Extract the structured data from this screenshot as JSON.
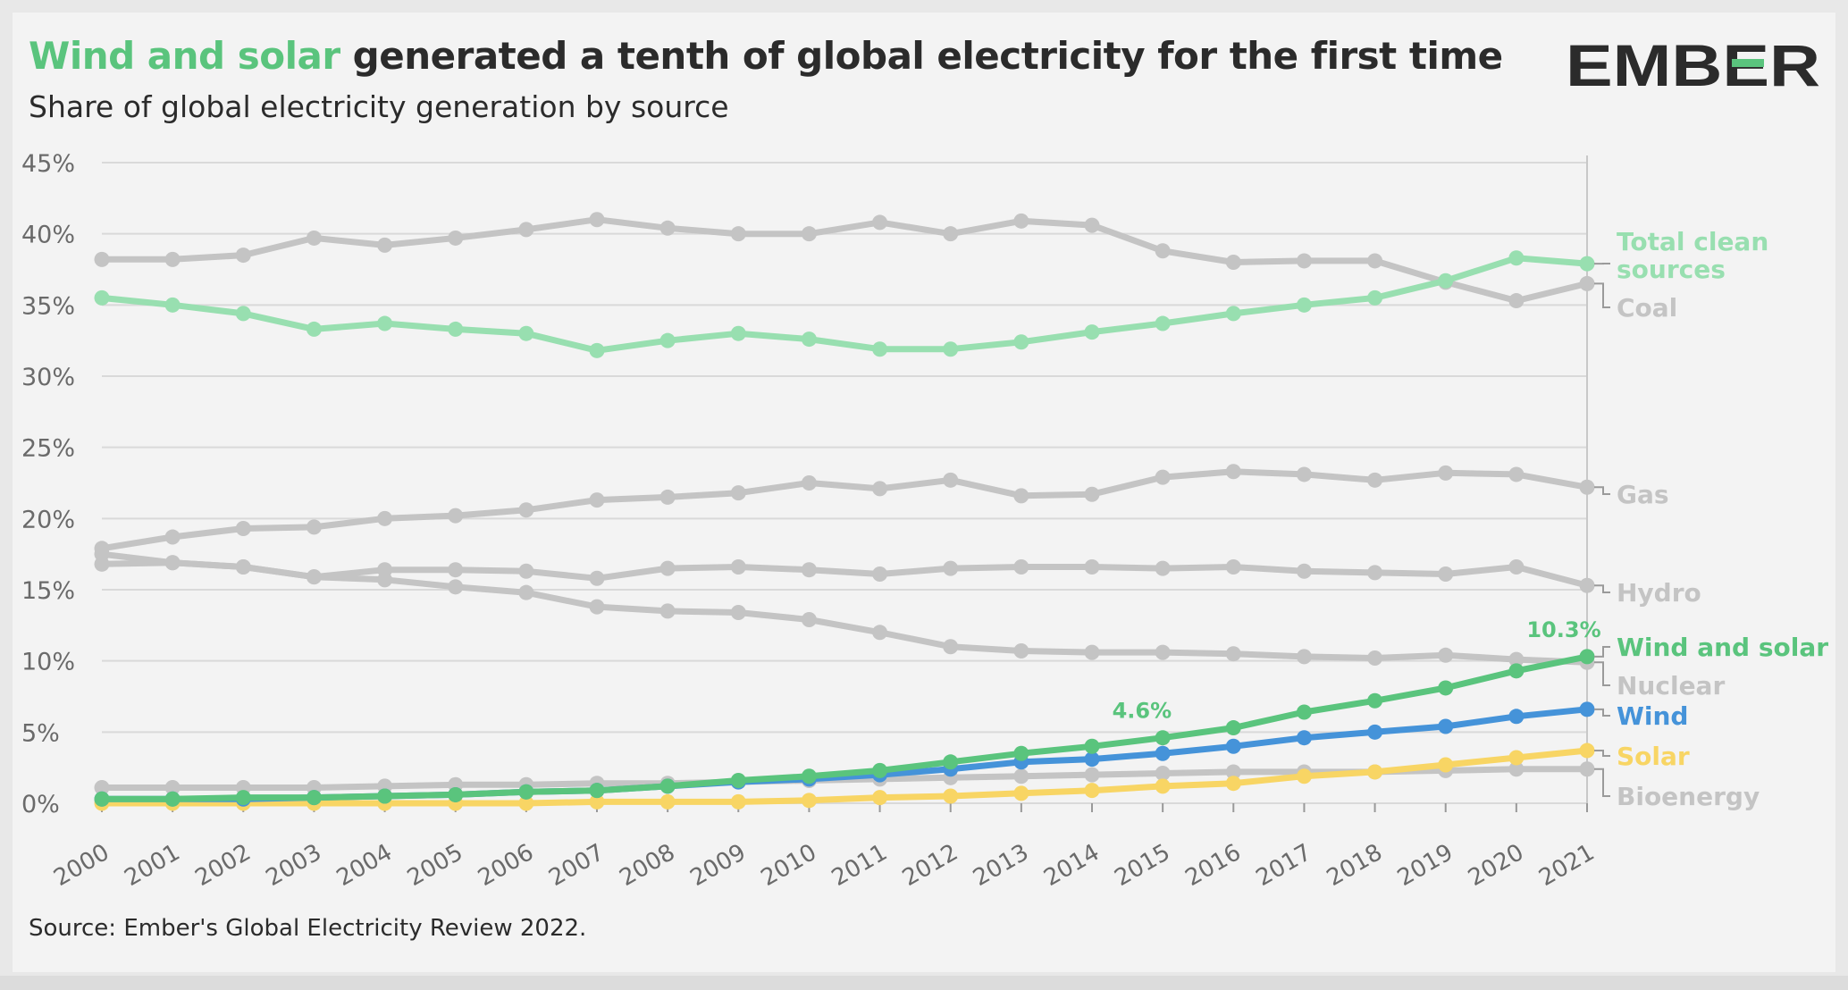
{
  "header": {
    "title_highlight": "Wind and solar",
    "title_rest": " generated a tenth of global electricity for the first time",
    "subtitle": "Share of global electricity generation by source"
  },
  "brand": {
    "logo_text": "EMBER"
  },
  "footer": {
    "source": "Source: Ember's Global Electricity Review 2022."
  },
  "colors": {
    "highlight_green": "#5ac47d",
    "clean_green": "#98dfb0",
    "wind_blue": "#4593d9",
    "solar_yellow": "#f8d564",
    "grey_series": "#c4c4c4",
    "grid": "#d9d9d9"
  },
  "chart_data": {
    "type": "line",
    "x": [
      2000,
      2001,
      2002,
      2003,
      2004,
      2005,
      2006,
      2007,
      2008,
      2009,
      2010,
      2011,
      2012,
      2013,
      2014,
      2015,
      2016,
      2017,
      2018,
      2019,
      2020,
      2021
    ],
    "x_tick_labels": [
      "2000",
      "2001",
      "2002",
      "2003",
      "2004",
      "2005",
      "2006",
      "2007",
      "2008",
      "2009",
      "2010",
      "2011",
      "2012",
      "2013",
      "2014",
      "2015",
      "2016",
      "2017",
      "2018",
      "2019",
      "2020",
      "2021"
    ],
    "ylim": [
      0,
      45
    ],
    "y_ticks": [
      0,
      5,
      10,
      15,
      20,
      25,
      30,
      35,
      40,
      45
    ],
    "y_tick_labels": [
      "0%",
      "5%",
      "10%",
      "15%",
      "20%",
      "25%",
      "30%",
      "35%",
      "40%",
      "45%"
    ],
    "grid": true,
    "legend": "direct labels at right end of lines",
    "series": [
      {
        "name": "Coal",
        "color": "#c4c4c4",
        "values": [
          38.2,
          38.2,
          38.5,
          39.7,
          39.2,
          39.7,
          40.3,
          41.0,
          40.4,
          40.0,
          40.0,
          40.8,
          40.0,
          40.9,
          40.6,
          38.8,
          38.0,
          38.1,
          38.1,
          36.6,
          35.3,
          36.5
        ]
      },
      {
        "name": "Total clean sources",
        "color": "#98dfb0",
        "values": [
          35.5,
          35.0,
          34.4,
          33.3,
          33.7,
          33.3,
          33.0,
          31.8,
          32.5,
          33.0,
          32.6,
          31.9,
          31.9,
          32.4,
          33.1,
          33.7,
          34.4,
          35.0,
          35.5,
          36.7,
          38.3,
          37.9
        ]
      },
      {
        "name": "Gas",
        "color": "#c4c4c4",
        "values": [
          17.9,
          18.7,
          19.3,
          19.4,
          20.0,
          20.2,
          20.6,
          21.3,
          21.5,
          21.8,
          22.5,
          22.1,
          22.7,
          21.6,
          21.7,
          22.9,
          23.3,
          23.1,
          22.7,
          23.2,
          23.1,
          22.2
        ]
      },
      {
        "name": "Hydro",
        "color": "#c4c4c4",
        "values": [
          16.8,
          16.9,
          16.6,
          15.9,
          16.4,
          16.4,
          16.3,
          15.8,
          16.5,
          16.6,
          16.4,
          16.1,
          16.5,
          16.6,
          16.6,
          16.5,
          16.6,
          16.3,
          16.2,
          16.1,
          16.6,
          15.3
        ]
      },
      {
        "name": "Nuclear",
        "color": "#c4c4c4",
        "values": [
          17.5,
          16.9,
          16.6,
          15.9,
          15.7,
          15.2,
          14.8,
          13.8,
          13.5,
          13.4,
          12.9,
          12.0,
          11.0,
          10.7,
          10.6,
          10.6,
          10.5,
          10.3,
          10.2,
          10.4,
          10.1,
          9.9
        ]
      },
      {
        "name": "Bioenergy",
        "color": "#c4c4c4",
        "values": [
          1.1,
          1.1,
          1.1,
          1.1,
          1.2,
          1.3,
          1.3,
          1.4,
          1.4,
          1.5,
          1.6,
          1.7,
          1.8,
          1.9,
          2.0,
          2.1,
          2.2,
          2.2,
          2.2,
          2.3,
          2.4,
          2.4
        ]
      },
      {
        "name": "Solar",
        "color": "#f8d564",
        "values": [
          0.0,
          0.0,
          0.0,
          0.0,
          0.0,
          0.0,
          0.0,
          0.1,
          0.1,
          0.1,
          0.2,
          0.4,
          0.5,
          0.7,
          0.9,
          1.2,
          1.4,
          1.9,
          2.2,
          2.7,
          3.2,
          3.7
        ]
      },
      {
        "name": "Wind",
        "color": "#4593d9",
        "values": [
          0.3,
          0.3,
          0.3,
          0.4,
          0.5,
          0.6,
          0.8,
          0.9,
          1.2,
          1.5,
          1.7,
          2.0,
          2.4,
          2.9,
          3.1,
          3.5,
          4.0,
          4.6,
          5.0,
          5.4,
          6.1,
          6.6
        ]
      },
      {
        "name": "Wind and solar",
        "color": "#5ac47d",
        "values": [
          0.3,
          0.3,
          0.4,
          0.4,
          0.5,
          0.6,
          0.8,
          0.9,
          1.2,
          1.6,
          1.9,
          2.3,
          2.9,
          3.5,
          4.0,
          4.6,
          5.3,
          6.4,
          7.2,
          8.1,
          9.3,
          10.3
        ]
      }
    ],
    "annotations": [
      {
        "x": 2015,
        "y": 4.6,
        "text": "4.6%",
        "series": "Wind and solar"
      },
      {
        "x": 2021,
        "y": 10.3,
        "text": "10.3%",
        "series": "Wind and solar"
      }
    ],
    "end_labels": [
      {
        "series": "Total clean sources",
        "lines": [
          "Total clean",
          "sources"
        ],
        "color": "#98dfb0"
      },
      {
        "series": "Coal",
        "lines": [
          "Coal"
        ],
        "color": "#c4c4c4"
      },
      {
        "series": "Gas",
        "lines": [
          "Gas"
        ],
        "color": "#c4c4c4"
      },
      {
        "series": "Hydro",
        "lines": [
          "Hydro"
        ],
        "color": "#c4c4c4"
      },
      {
        "series": "Wind and solar",
        "lines": [
          "Wind and solar"
        ],
        "color": "#5ac47d"
      },
      {
        "series": "Nuclear",
        "lines": [
          "Nuclear"
        ],
        "color": "#c4c4c4"
      },
      {
        "series": "Wind",
        "lines": [
          "Wind"
        ],
        "color": "#4593d9"
      },
      {
        "series": "Solar",
        "lines": [
          "Solar"
        ],
        "color": "#f8d564"
      },
      {
        "series": "Bioenergy",
        "lines": [
          "Bioenergy"
        ],
        "color": "#c4c4c4"
      }
    ]
  }
}
